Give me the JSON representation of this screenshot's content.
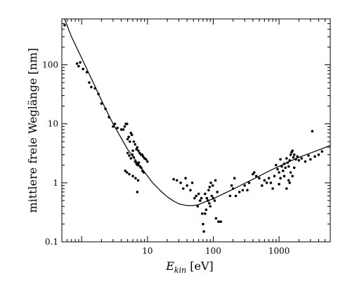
{
  "chart_data": {
    "type": "scatter",
    "title": "",
    "xlabel": "E",
    "xlabel_sub": "kin",
    "xlabel_unit": " [eV]",
    "ylabel": "mittlere freie Weglänge [nm]",
    "xscale": "log",
    "yscale": "log",
    "xlim": [
      0.5,
      6000
    ],
    "ylim": [
      0.1,
      600
    ],
    "x_ticks": [
      10,
      100,
      1000
    ],
    "x_tick_labels": [
      "10",
      "100",
      "1000"
    ],
    "y_ticks": [
      0.1,
      1,
      10,
      100
    ],
    "y_tick_labels": [
      "0.1",
      "1",
      "10",
      "100"
    ],
    "grid": false,
    "legend": "none",
    "series": [
      {
        "kind": "scatter",
        "points": [
          [
            0.55,
            470
          ],
          [
            0.85,
            105
          ],
          [
            0.9,
            95
          ],
          [
            0.95,
            110
          ],
          [
            1.05,
            85
          ],
          [
            1.2,
            75
          ],
          [
            1.3,
            50
          ],
          [
            1.4,
            42
          ],
          [
            1.6,
            40
          ],
          [
            1.8,
            32
          ],
          [
            2.0,
            22
          ],
          [
            2.3,
            18
          ],
          [
            2.6,
            13
          ],
          [
            3.0,
            9
          ],
          [
            3.2,
            10
          ],
          [
            3.5,
            8.5
          ],
          [
            4.0,
            8
          ],
          [
            4.3,
            8
          ],
          [
            4.5,
            9
          ],
          [
            4.7,
            10
          ],
          [
            4.9,
            10
          ],
          [
            5.0,
            5.5
          ],
          [
            5.2,
            6
          ],
          [
            5.4,
            5
          ],
          [
            5.6,
            7
          ],
          [
            5.8,
            6.5
          ],
          [
            6.0,
            3.5
          ],
          [
            6.2,
            5
          ],
          [
            6.5,
            4.5
          ],
          [
            6.8,
            3.7
          ],
          [
            7.0,
            4
          ],
          [
            7.3,
            3.5
          ],
          [
            7.6,
            3.2
          ],
          [
            8.0,
            3
          ],
          [
            8.3,
            3
          ],
          [
            8.6,
            2.8
          ],
          [
            9.0,
            2.6
          ],
          [
            9.5,
            2.5
          ],
          [
            10.0,
            2.3
          ],
          [
            5.0,
            3.2
          ],
          [
            5.3,
            2.9
          ],
          [
            5.6,
            2.6
          ],
          [
            5.9,
            3
          ],
          [
            6.2,
            2.7
          ],
          [
            6.5,
            2.3
          ],
          [
            6.8,
            2.1
          ],
          [
            7.1,
            2
          ],
          [
            7.4,
            2.2
          ],
          [
            7.7,
            1.9
          ],
          [
            8.0,
            1.8
          ],
          [
            8.4,
            1.6
          ],
          [
            8.8,
            1.5
          ],
          [
            4.6,
            1.6
          ],
          [
            4.9,
            1.5
          ],
          [
            5.3,
            1.4
          ],
          [
            6.0,
            1.3
          ],
          [
            6.6,
            1.2
          ],
          [
            7.2,
            1.1
          ],
          [
            7.0,
            0.7
          ],
          [
            25,
            1.15
          ],
          [
            28,
            1.1
          ],
          [
            32,
            1.0
          ],
          [
            35,
            0.8
          ],
          [
            38,
            1.2
          ],
          [
            40,
            0.9
          ],
          [
            45,
            0.75
          ],
          [
            48,
            1.0
          ],
          [
            52,
            0.55
          ],
          [
            55,
            0.6
          ],
          [
            58,
            0.4
          ],
          [
            60,
            0.65
          ],
          [
            63,
            0.5
          ],
          [
            66,
            0.55
          ],
          [
            68,
            0.3
          ],
          [
            70,
            0.2
          ],
          [
            72,
            0.15
          ],
          [
            75,
            0.3
          ],
          [
            78,
            0.35
          ],
          [
            80,
            0.55
          ],
          [
            83,
            0.5
          ],
          [
            87,
            0.45
          ],
          [
            90,
            0.4
          ],
          [
            95,
            0.6
          ],
          [
            100,
            0.55
          ],
          [
            105,
            0.5
          ],
          [
            110,
            0.25
          ],
          [
            115,
            0.7
          ],
          [
            120,
            0.22
          ],
          [
            130,
            0.22
          ],
          [
            88,
            0.85
          ],
          [
            92,
            1.0
          ],
          [
            98,
            0.9
          ],
          [
            108,
            1.1
          ],
          [
            75,
            0.65
          ],
          [
            85,
            0.75
          ],
          [
            180,
            0.6
          ],
          [
            190,
            0.9
          ],
          [
            200,
            0.8
          ],
          [
            210,
            1.2
          ],
          [
            220,
            0.6
          ],
          [
            250,
            0.7
          ],
          [
            280,
            0.75
          ],
          [
            300,
            0.9
          ],
          [
            330,
            0.75
          ],
          [
            350,
            1.0
          ],
          [
            400,
            1.4
          ],
          [
            420,
            1.5
          ],
          [
            450,
            1.3
          ],
          [
            500,
            1.2
          ],
          [
            550,
            0.9
          ],
          [
            600,
            1.1
          ],
          [
            650,
            1.0
          ],
          [
            700,
            1.2
          ],
          [
            750,
            1.0
          ],
          [
            800,
            0.8
          ],
          [
            850,
            1.3
          ],
          [
            900,
            2.0
          ],
          [
            950,
            1.7
          ],
          [
            1000,
            1.5
          ],
          [
            1050,
            2.5
          ],
          [
            1100,
            1.9
          ],
          [
            1150,
            1.6
          ],
          [
            1200,
            2.1
          ],
          [
            1250,
            1.8
          ],
          [
            1300,
            2.6
          ],
          [
            1350,
            2.2
          ],
          [
            1400,
            1.9
          ],
          [
            1450,
            2.4
          ],
          [
            1500,
            3.0
          ],
          [
            1550,
            3.3
          ],
          [
            1600,
            3.5
          ],
          [
            1650,
            2.7
          ],
          [
            1700,
            3.0
          ],
          [
            1800,
            2.5
          ],
          [
            1900,
            2.8
          ],
          [
            2000,
            2.4
          ],
          [
            2200,
            2.6
          ],
          [
            2500,
            2.3
          ],
          [
            2800,
            2.9
          ],
          [
            3000,
            2.5
          ],
          [
            3200,
            7.5
          ],
          [
            3500,
            2.8
          ],
          [
            4000,
            3.0
          ],
          [
            4500,
            3.4
          ],
          [
            1200,
            1.3
          ],
          [
            1300,
            0.8
          ],
          [
            1400,
            1.1
          ],
          [
            1450,
            1.0
          ],
          [
            1500,
            1.5
          ],
          [
            1600,
            1.3
          ],
          [
            1700,
            1.8
          ],
          [
            1050,
            1.2
          ],
          [
            1000,
            0.95
          ]
        ]
      },
      {
        "kind": "line",
        "points": [
          [
            0.55,
            600
          ],
          [
            0.7,
            300
          ],
          [
            1.0,
            130
          ],
          [
            1.5,
            50
          ],
          [
            2.0,
            25
          ],
          [
            3.0,
            10
          ],
          [
            5.0,
            3.7
          ],
          [
            8.0,
            1.8
          ],
          [
            12,
            1.0
          ],
          [
            16,
            0.72
          ],
          [
            20,
            0.58
          ],
          [
            25,
            0.49
          ],
          [
            30,
            0.44
          ],
          [
            40,
            0.41
          ],
          [
            50,
            0.41
          ],
          [
            60,
            0.43
          ],
          [
            80,
            0.49
          ],
          [
            100,
            0.54
          ],
          [
            150,
            0.67
          ],
          [
            200,
            0.78
          ],
          [
            300,
            0.98
          ],
          [
            500,
            1.3
          ],
          [
            800,
            1.7
          ],
          [
            1000,
            1.9
          ],
          [
            1500,
            2.35
          ],
          [
            2000,
            2.7
          ],
          [
            3000,
            3.2
          ],
          [
            4000,
            3.6
          ],
          [
            6000,
            4.3
          ]
        ]
      }
    ]
  }
}
